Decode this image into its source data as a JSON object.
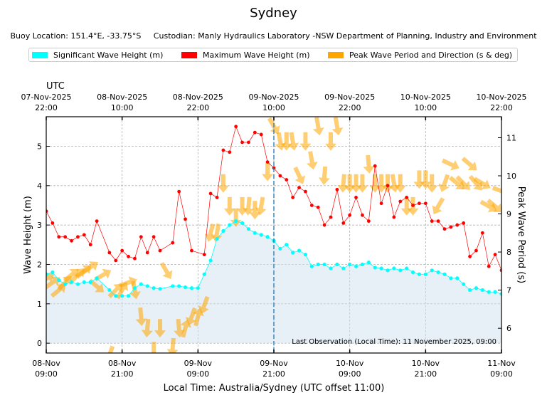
{
  "page": {
    "title": "Sydney",
    "subtitle": "Buoy Location: 151.4°E, -33.75°S     Custodian: Manly Hydraulics Laboratory -NSW Department of Planning, Industry and Environment",
    "legend": [
      {
        "label": "Significant Wave Height (m)",
        "color": "#00ffff"
      },
      {
        "label": "Maximum Wave Height (m)",
        "color": "#ff0000"
      },
      {
        "label": "Peak Wave Period and Direction (s & deg)",
        "color": "#ffa500"
      }
    ]
  },
  "chart_data": {
    "type": "line",
    "title": "Sydney",
    "xlabel": "Local Time: Australia/Sydney (UTC offset 11:00)",
    "ylabel": "Wave Height (m)",
    "y2label": "Peak Wave Period (s)",
    "top_axis_label": "UTC",
    "x_unit": "hours since 08-Nov 09:00 local",
    "xlim": [
      0,
      72
    ],
    "ylim": [
      -0.25,
      5.75
    ],
    "y2lim": [
      5.35,
      11.55
    ],
    "yticks": [
      0,
      1,
      2,
      3,
      4,
      5
    ],
    "y2ticks": [
      6,
      7,
      8,
      9,
      10,
      11
    ],
    "xticks": [
      {
        "x": 0,
        "line1": "08-Nov",
        "line2": "09:00"
      },
      {
        "x": 12,
        "line1": "08-Nov",
        "line2": "21:00"
      },
      {
        "x": 24,
        "line1": "09-Nov",
        "line2": "09:00"
      },
      {
        "x": 36,
        "line1": "09-Nov",
        "line2": "21:00"
      },
      {
        "x": 48,
        "line1": "10-Nov",
        "line2": "09:00"
      },
      {
        "x": 60,
        "line1": "10-Nov",
        "line2": "21:00"
      },
      {
        "x": 72,
        "line1": "11-Nov",
        "line2": "09:00"
      }
    ],
    "xticks_top": [
      {
        "x": 0,
        "line1": "07-Nov-2025",
        "line2": "22:00"
      },
      {
        "x": 12,
        "line1": "08-Nov-2025",
        "line2": "10:00"
      },
      {
        "x": 24,
        "line1": "08-Nov-2025",
        "line2": "22:00"
      },
      {
        "x": 36,
        "line1": "09-Nov-2025",
        "line2": "10:00"
      },
      {
        "x": 48,
        "line1": "09-Nov-2025",
        "line2": "22:00"
      },
      {
        "x": 60,
        "line1": "10-Nov-2025",
        "line2": "10:00"
      },
      {
        "x": 72,
        "line1": "10-Nov-2025",
        "line2": "22:00"
      }
    ],
    "vline_x": 36,
    "annotation": "Last Observation (Local Time): 11 November 2025, 09:00",
    "series": [
      {
        "name": "Significant Wave Height (m)",
        "color": "#00ffff",
        "x": [
          0,
          1,
          2,
          3,
          4,
          5,
          6,
          7,
          8,
          10,
          11,
          12,
          13,
          14,
          15,
          16,
          17,
          18,
          20,
          21,
          22,
          23,
          24,
          25,
          26,
          27,
          28,
          29,
          30,
          31,
          32,
          33,
          34,
          35,
          36,
          37,
          38,
          39,
          40,
          41,
          42,
          43,
          44,
          45,
          46,
          47,
          48,
          49,
          50,
          51,
          52,
          53,
          54,
          55,
          56,
          57,
          58,
          59,
          60,
          61,
          62,
          63,
          64,
          65,
          66,
          67,
          68,
          69,
          70,
          71,
          72
        ],
        "values": [
          1.75,
          1.8,
          1.6,
          1.5,
          1.55,
          1.5,
          1.55,
          1.55,
          1.65,
          1.35,
          1.2,
          1.2,
          1.2,
          1.4,
          1.5,
          1.45,
          1.4,
          1.38,
          1.45,
          1.45,
          1.42,
          1.4,
          1.4,
          1.75,
          2.1,
          2.65,
          2.85,
          3.0,
          3.1,
          3.05,
          2.9,
          2.8,
          2.75,
          2.7,
          2.6,
          2.4,
          2.5,
          2.3,
          2.35,
          2.25,
          1.95,
          2.0,
          2.0,
          1.9,
          2.0,
          1.9,
          2.0,
          1.95,
          2.0,
          2.05,
          1.92,
          1.9,
          1.85,
          1.9,
          1.85,
          1.9,
          1.8,
          1.75,
          1.75,
          1.85,
          1.8,
          1.75,
          1.65,
          1.65,
          1.5,
          1.35,
          1.4,
          1.35,
          1.3,
          1.3,
          1.25
        ]
      },
      {
        "name": "Maximum Wave Height (m)",
        "color": "#ff0000",
        "x": [
          0,
          1,
          2,
          3,
          4,
          5,
          6,
          7,
          8,
          10,
          11,
          12,
          13,
          14,
          15,
          16,
          17,
          18,
          20,
          21,
          22,
          23,
          25,
          26,
          27,
          28,
          29,
          30,
          31,
          32,
          33,
          34,
          35,
          36,
          37,
          38,
          39,
          40,
          41,
          42,
          43,
          44,
          45,
          46,
          47,
          48,
          49,
          50,
          51,
          52,
          53,
          54,
          55,
          56,
          57,
          58,
          59,
          60,
          61,
          62,
          63,
          64,
          65,
          66,
          67,
          68,
          69,
          70,
          71,
          72
        ],
        "values": [
          3.35,
          3.05,
          2.7,
          2.7,
          2.6,
          2.7,
          2.75,
          2.5,
          3.1,
          2.3,
          2.1,
          2.35,
          2.2,
          2.15,
          2.7,
          2.3,
          2.7,
          2.35,
          2.55,
          3.85,
          3.15,
          2.35,
          2.25,
          3.8,
          3.7,
          4.9,
          4.85,
          5.5,
          5.1,
          5.1,
          5.35,
          5.3,
          4.6,
          4.45,
          4.25,
          4.15,
          3.7,
          3.95,
          3.85,
          3.5,
          3.45,
          3.0,
          3.2,
          3.9,
          3.05,
          3.25,
          3.7,
          3.25,
          3.1,
          4.5,
          3.55,
          4.0,
          3.2,
          3.6,
          3.7,
          3.5,
          3.55,
          3.55,
          3.1,
          3.1,
          2.9,
          2.95,
          3.0,
          3.05,
          2.2,
          2.35,
          2.8,
          1.95,
          2.25,
          1.85
        ]
      }
    ],
    "peak_period_direction": {
      "name": "Peak Wave Period and Direction (s & deg)",
      "color": "#ffa500",
      "x": [
        0,
        1,
        2,
        3,
        4,
        5,
        6,
        7,
        8,
        9,
        10,
        11,
        12,
        13,
        14,
        15,
        16,
        17,
        18,
        19,
        20,
        21,
        22,
        23,
        24,
        25,
        26,
        27,
        28,
        29,
        30,
        31,
        32,
        33,
        34,
        35,
        36,
        37,
        38,
        39,
        40,
        41,
        42,
        43,
        44,
        45,
        46,
        47,
        48,
        49,
        50,
        51,
        52,
        53,
        54,
        55,
        56,
        57,
        58,
        59,
        60,
        61,
        62,
        63,
        64,
        65,
        66,
        67,
        68,
        69,
        70,
        71,
        72
      ],
      "period_s": [
        7.3,
        7.2,
        7.0,
        7.2,
        7.4,
        7.4,
        7.5,
        7.6,
        7.1,
        7.4,
        5.3,
        7.0,
        7.0,
        7.2,
        7.0,
        6.3,
        6.0,
        5.4,
        6.0,
        7.5,
        5.5,
        6.0,
        6.0,
        6.3,
        6.3,
        6.6,
        8.5,
        8.5,
        9.8,
        9.2,
        8.9,
        9.2,
        9.2,
        9.1,
        9.2,
        10.1,
        11.3,
        10.9,
        10.9,
        10.9,
        10.0,
        10.9,
        10.4,
        11.3,
        10.0,
        10.9,
        11.3,
        9.8,
        9.8,
        9.8,
        9.8,
        10.3,
        9.8,
        9.8,
        9.8,
        9.8,
        9.8,
        9.2,
        9.2,
        9.9,
        9.9,
        9.8,
        9.2,
        9.8,
        10.3,
        9.8,
        9.8,
        10.3,
        9.8,
        9.8,
        9.2,
        9.2,
        9.6
      ],
      "direction_deg": [
        60,
        55,
        50,
        45,
        50,
        45,
        50,
        55,
        130,
        60,
        200,
        45,
        30,
        70,
        170,
        175,
        185,
        180,
        180,
        150,
        185,
        175,
        15,
        200,
        15,
        200,
        195,
        190,
        180,
        180,
        180,
        180,
        185,
        180,
        190,
        180,
        150,
        170,
        180,
        170,
        155,
        180,
        170,
        170,
        185,
        180,
        170,
        185,
        180,
        180,
        180,
        175,
        180,
        180,
        180,
        170,
        180,
        180,
        180,
        180,
        180,
        180,
        210,
        200,
        115,
        130,
        135,
        130,
        140,
        120,
        120,
        130,
        110
      ]
    }
  }
}
